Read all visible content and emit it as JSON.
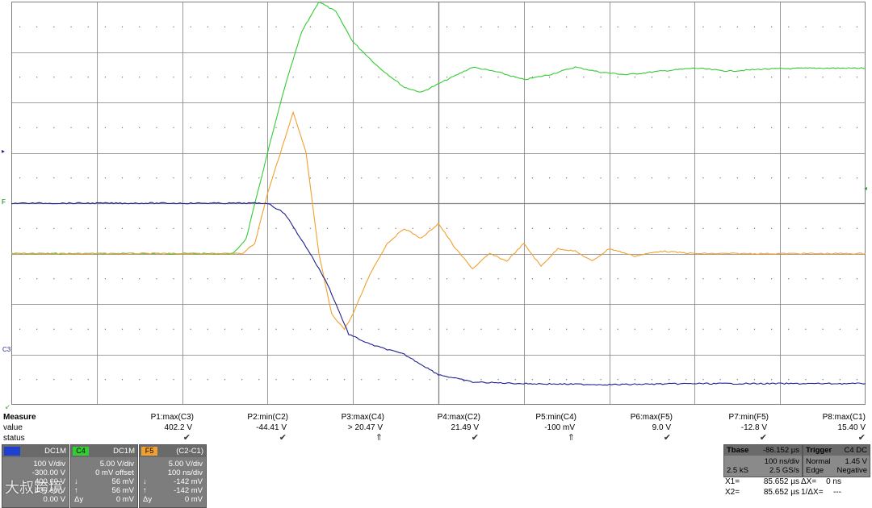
{
  "colors": {
    "c1": "#1f1f8f",
    "c4": "#33cc33",
    "f5": "#f0a030",
    "grid": "#808080"
  },
  "chart_data": {
    "type": "line",
    "grid": {
      "h_div": 10,
      "v_div": 8
    },
    "series": [
      {
        "id": "c4",
        "color": "#33cc33",
        "points": [
          [
            0,
            3.0
          ],
          [
            2.6,
            3.0
          ],
          [
            2.75,
            3.3
          ],
          [
            3.0,
            5.0
          ],
          [
            3.2,
            6.3
          ],
          [
            3.4,
            7.4
          ],
          [
            3.6,
            8.0
          ],
          [
            3.8,
            7.8
          ],
          [
            4.0,
            7.2
          ],
          [
            4.3,
            6.7
          ],
          [
            4.6,
            6.3
          ],
          [
            4.8,
            6.2
          ],
          [
            5.1,
            6.45
          ],
          [
            5.4,
            6.7
          ],
          [
            5.7,
            6.6
          ],
          [
            6.0,
            6.45
          ],
          [
            6.3,
            6.55
          ],
          [
            6.6,
            6.7
          ],
          [
            6.9,
            6.6
          ],
          [
            7.2,
            6.55
          ],
          [
            7.6,
            6.62
          ],
          [
            8.0,
            6.68
          ],
          [
            8.4,
            6.62
          ],
          [
            8.8,
            6.66
          ],
          [
            9.4,
            6.68
          ],
          [
            10,
            6.68
          ]
        ]
      },
      {
        "id": "f5",
        "color": "#f0a030",
        "points": [
          [
            0,
            3.0
          ],
          [
            2.7,
            3.0
          ],
          [
            2.85,
            3.2
          ],
          [
            3.0,
            4.2
          ],
          [
            3.15,
            5.0
          ],
          [
            3.3,
            5.8
          ],
          [
            3.45,
            5.0
          ],
          [
            3.6,
            3.0
          ],
          [
            3.75,
            1.8
          ],
          [
            3.9,
            1.5
          ],
          [
            4.0,
            1.8
          ],
          [
            4.2,
            2.6
          ],
          [
            4.4,
            3.2
          ],
          [
            4.6,
            3.5
          ],
          [
            4.8,
            3.3
          ],
          [
            5.0,
            3.6
          ],
          [
            5.2,
            3.1
          ],
          [
            5.4,
            2.7
          ],
          [
            5.6,
            3.0
          ],
          [
            5.8,
            2.85
          ],
          [
            6.0,
            3.2
          ],
          [
            6.2,
            2.75
          ],
          [
            6.4,
            3.1
          ],
          [
            6.6,
            3.05
          ],
          [
            6.8,
            2.85
          ],
          [
            7.0,
            3.1
          ],
          [
            7.3,
            2.95
          ],
          [
            7.6,
            3.05
          ],
          [
            8.0,
            3.0
          ],
          [
            9.0,
            3.0
          ],
          [
            10,
            3.0
          ]
        ]
      },
      {
        "id": "c1",
        "color": "#1f1f8f",
        "points": [
          [
            0,
            4.0
          ],
          [
            3.0,
            4.0
          ],
          [
            3.2,
            3.8
          ],
          [
            3.5,
            3.0
          ],
          [
            3.7,
            2.4
          ],
          [
            3.8,
            2.0
          ],
          [
            3.95,
            1.4
          ],
          [
            4.2,
            1.2
          ],
          [
            4.6,
            1.0
          ],
          [
            5.0,
            0.6
          ],
          [
            5.4,
            0.45
          ],
          [
            6.0,
            0.42
          ],
          [
            7.0,
            0.4
          ],
          [
            8.0,
            0.42
          ],
          [
            10,
            0.42
          ]
        ]
      }
    ]
  },
  "markers": {
    "c1_label": "C3",
    "f5_label": "F5"
  },
  "measure": {
    "title": "Measure",
    "row_value": "value",
    "row_status": "status",
    "params": [
      {
        "name": "P1:max(C3)",
        "value": "402.2 V",
        "status": "✔"
      },
      {
        "name": "P2:min(C2)",
        "value": "-44.41 V",
        "status": "✔"
      },
      {
        "name": "P3:max(C4)",
        "value": "> 20.47 V",
        "status": "⇑"
      },
      {
        "name": "P4:max(C2)",
        "value": "21.49 V",
        "status": "✔"
      },
      {
        "name": "P5:min(C4)",
        "value": "-100 mV",
        "status": "⇑"
      },
      {
        "name": "P6:max(F5)",
        "value": "9.0 V",
        "status": "✔"
      },
      {
        "name": "P7:min(F5)",
        "value": "-12.8 V",
        "status": "✔"
      },
      {
        "name": "P8:max(C1)",
        "value": "15.40 V",
        "status": "✔"
      }
    ]
  },
  "ch1": {
    "tag": "",
    "coupling": "DC1M",
    "vdiv": "100 V/div",
    "offset": "-300.00 V",
    "l3": "400.60 V",
    "l4": "400.60 V",
    "l5": "0.00 V"
  },
  "ch4": {
    "tag": "C4",
    "coupling": "DC1M",
    "vdiv": "5.00 V/div",
    "offset": "0 mV offset",
    "l3": "56 mV",
    "l4": "56 mV",
    "l5": "0 mV",
    "dy": "Δy"
  },
  "f5": {
    "tag": "F5",
    "formula": "(C2-C1)",
    "vdiv": "5.00 V/div",
    "tdiv": "100 ns/div",
    "l3": "-142 mV",
    "l4": "-142 mV",
    "l5": "0 mV",
    "dy": "Δy"
  },
  "tbase": {
    "label": "Tbase",
    "value": "-86.152 µs",
    "tdiv": "100 ns/div",
    "samples": "2.5 kS",
    "rate": "2.5 GS/s"
  },
  "trigger": {
    "label": "Trigger",
    "src": "C4 DC",
    "mode": "Normal",
    "level": "1.45 V",
    "type": "Edge",
    "slope": "Negative"
  },
  "cursors": {
    "x1": "X1=",
    "x1v": "85.652 µs",
    "dx": "ΔX=",
    "dxv": "0 ns",
    "x2": "X2=",
    "x2v": "85.652 µs",
    "inv": "1/ΔX=",
    "invv": "---"
  },
  "watermark": "大叔跨境"
}
